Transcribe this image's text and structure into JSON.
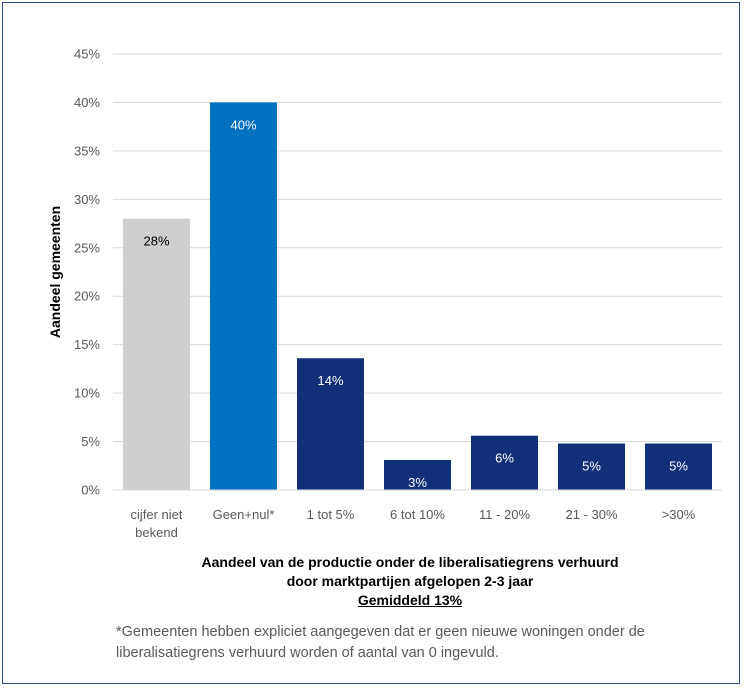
{
  "chart_data": {
    "type": "bar",
    "categories": [
      [
        "cijfer niet",
        "bekend"
      ],
      [
        "Geen+nul*"
      ],
      [
        "1 tot 5%"
      ],
      [
        "6 tot 10%"
      ],
      [
        "11 - 20%"
      ],
      [
        "21 - 30%"
      ],
      [
        ">30%"
      ]
    ],
    "values": [
      28,
      40,
      13.6,
      3.1,
      5.6,
      4.8,
      4.8
    ],
    "data_labels": [
      "28%",
      "40%",
      "14%",
      "3%",
      "6%",
      "5%",
      "5%"
    ],
    "bar_colors": [
      "#d0cece",
      "#0070c0",
      "#12307a",
      "#12307a",
      "#12307a",
      "#12307a",
      "#12307a"
    ],
    "label_colors": [
      "#000000",
      "#ffffff",
      "#ffffff",
      "#ffffff",
      "#ffffff",
      "#ffffff",
      "#ffffff"
    ],
    "ylim": [
      0,
      45
    ],
    "yticks": [
      0,
      5,
      10,
      15,
      20,
      25,
      30,
      35,
      40,
      45
    ],
    "ytick_labels": [
      "0%",
      "5%",
      "10%",
      "15%",
      "20%",
      "25%",
      "30%",
      "35%",
      "40%",
      "45%"
    ],
    "ylabel": "Aandeel gemeenten",
    "xlabel_lines": [
      "Aandeel van de productie onder de liberalisatiegrens verhuurd",
      "door marktpartijen afgelopen 2-3 jaar"
    ],
    "xlabel_average": "Gemiddeld 13%",
    "grid": true,
    "gridline_color": "#d9d9d9"
  },
  "footnote": "*Gemeenten hebben expliciet aangegeven dat er geen nieuwe woningen onder de liberalisatiegrens verhuurd worden of aantal van 0 ingevuld."
}
